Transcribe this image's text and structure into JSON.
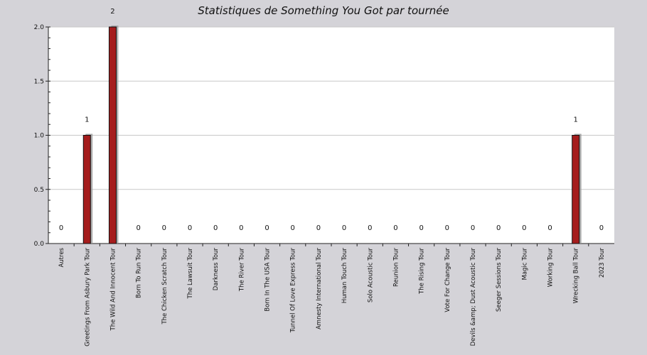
{
  "chart_data": {
    "type": "bar",
    "title": "Statistiques de Something You Got par tournée",
    "xlabel": "",
    "ylabel": "",
    "ylim": [
      0,
      2.0
    ],
    "yticks": [
      "0.0",
      "0.5",
      "1.0",
      "1.5",
      "2.0"
    ],
    "grid": true,
    "colors": {
      "bar": "#a51d1d",
      "bar_shadow": "#9a9a9a",
      "plot_bg": "#ffffff",
      "page_bg": "#d4d3d8"
    },
    "categories": [
      "Autres",
      "Greetings From Asbury Park Tour",
      "The Wild And Innocent Tour",
      "Born To Run Tour",
      "The Chicken Scratch Tour",
      "The Lawsuit Tour",
      "Darkness Tour",
      "The River Tour",
      "Born In The USA Tour",
      "Tunnel Of Love Express Tour",
      "Amnesty International Tour",
      "Human Touch Tour",
      "Solo Acoustic Tour",
      "Reunion Tour",
      "The Rising Tour",
      "Vote For Change Tour",
      "Devils &amp; Dust Acoustic Tour",
      "Seeger Sessions Tour",
      "Magic Tour",
      "Working Tour",
      "Wrecking Ball Tour",
      "2023 Tour"
    ],
    "values": [
      0,
      1,
      2,
      0,
      0,
      0,
      0,
      0,
      0,
      0,
      0,
      0,
      0,
      0,
      0,
      0,
      0,
      0,
      0,
      0,
      1,
      0
    ],
    "data_labels": [
      "0",
      "1",
      "2",
      "0",
      "0",
      "0",
      "0",
      "0",
      "0",
      "0",
      "0",
      "0",
      "0",
      "0",
      "0",
      "0",
      "0",
      "0",
      "0",
      "0",
      "1",
      "0"
    ]
  }
}
